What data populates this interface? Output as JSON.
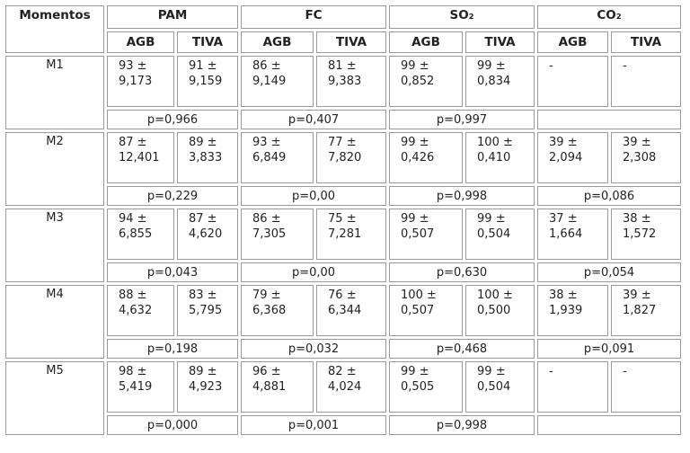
{
  "table": {
    "header": {
      "corner": "Momentos",
      "groups": [
        "PAM",
        "FC",
        "SO₂",
        "CO₂"
      ],
      "subgroups": [
        "AGB",
        "TIVA"
      ]
    },
    "rows": [
      {
        "moment": "M1",
        "values": [
          "93 ± 9,173",
          "91 ± 9,159",
          "86 ± 9,149",
          "81 ± 9,383",
          "99 ± 0,852",
          "99 ± 0,834",
          "-",
          "-"
        ],
        "p": [
          "p=0,966",
          "p=0,407",
          "p=0,997",
          null
        ]
      },
      {
        "moment": "M2",
        "values": [
          "87 ± 12,401",
          "89 ± 3,833",
          "93 ± 6,849",
          "77 ± 7,820",
          "99 ± 0,426",
          "100 ± 0,410",
          "39 ± 2,094",
          "39 ± 2,308"
        ],
        "p": [
          "p=0,229",
          "p=0,00",
          "p=0,998",
          "p=0,086"
        ]
      },
      {
        "moment": "M3",
        "values": [
          "94 ± 6,855",
          "87 ± 4,620",
          "86 ± 7,305",
          "75 ± 7,281",
          "99 ± 0,507",
          "99 ± 0,504",
          "37 ± 1,664",
          "38 ± 1,572"
        ],
        "p": [
          "p=0,043",
          "p=0,00",
          "p=0,630",
          "p=0,054"
        ]
      },
      {
        "moment": "M4",
        "values": [
          "88 ± 4,632",
          "83 ± 5,795",
          "79 ± 6,368",
          "76 ± 6,344",
          "100 ± 0,507",
          "100 ± 0,500",
          "38 ± 1,939",
          "39 ± 1,827"
        ],
        "p": [
          "p=0,198",
          "p=0,032",
          "p=0,468",
          "p=0,091"
        ]
      },
      {
        "moment": "M5",
        "values": [
          "98 ± 5,419",
          "89 ± 4,923",
          "96 ± 4,881",
          "82 ± 4,024",
          "99 ± 0,505",
          "99 ± 0,504",
          "-",
          "-"
        ],
        "p": [
          "p=0,000",
          "p=0,001",
          "p=0,998",
          null
        ]
      }
    ]
  }
}
